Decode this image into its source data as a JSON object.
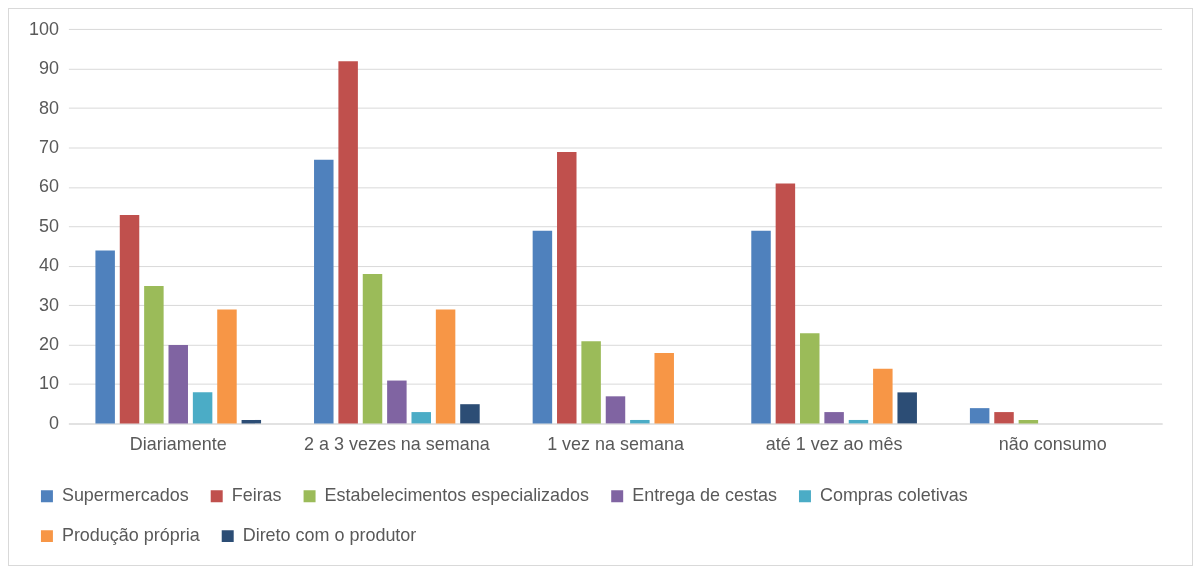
{
  "chart_data": {
    "type": "bar",
    "categories": [
      "Diariamente",
      "2 a 3 vezes na semana",
      "1 vez na semana",
      "até 1 vez ao mês",
      "não consumo"
    ],
    "series": [
      {
        "name": "Supermercados",
        "color": "#4f81bd",
        "values": [
          44,
          67,
          49,
          49,
          4
        ]
      },
      {
        "name": "Feiras",
        "color": "#c0504d",
        "values": [
          53,
          92,
          69,
          61,
          3
        ]
      },
      {
        "name": "Estabelecimentos especializados",
        "color": "#9bbb59",
        "values": [
          35,
          38,
          21,
          23,
          1
        ]
      },
      {
        "name": "Entrega de cestas",
        "color": "#8064a2",
        "values": [
          20,
          11,
          7,
          3,
          0
        ]
      },
      {
        "name": "Compras coletivas",
        "color": "#4bacc6",
        "values": [
          8,
          3,
          1,
          1,
          0
        ]
      },
      {
        "name": "Produção própria",
        "color": "#f79646",
        "values": [
          29,
          29,
          18,
          14,
          0
        ]
      },
      {
        "name": "Direto com o produtor",
        "color": "#2c4d75",
        "values": [
          1,
          5,
          0,
          8,
          0
        ]
      }
    ],
    "ylim": [
      0,
      100
    ],
    "yticks": [
      0,
      10,
      20,
      30,
      40,
      50,
      60,
      70,
      80,
      90,
      100
    ],
    "grid": "y",
    "legend": "bottom"
  }
}
